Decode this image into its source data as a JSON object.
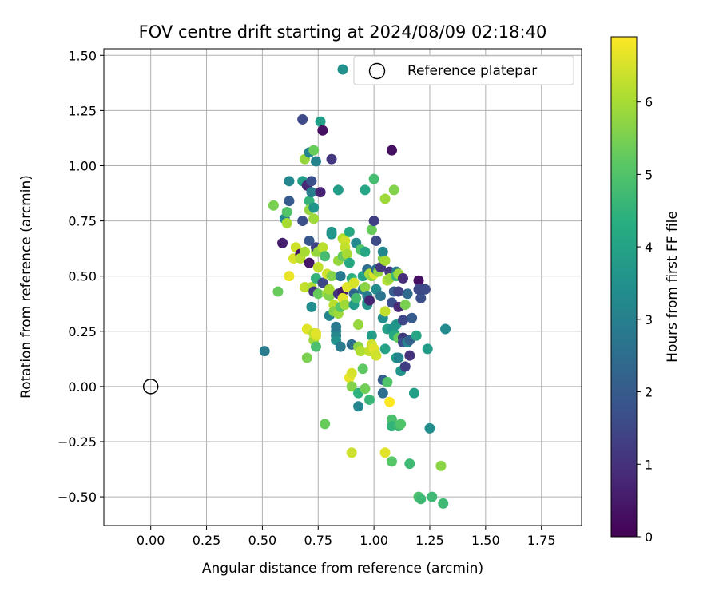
{
  "chart_data": {
    "type": "scatter",
    "title": "FOV centre drift starting at 2024/08/09 02:18:40",
    "xlabel": "Angular distance from reference (arcmin)",
    "ylabel": "Rotation from reference (arcmin)",
    "xlim": [
      -0.21,
      1.93
    ],
    "ylim": [
      -0.63,
      1.53
    ],
    "x_ticks": [
      0.0,
      0.25,
      0.5,
      0.75,
      1.0,
      1.25,
      1.5,
      1.75
    ],
    "x_tick_labels": [
      "0.00",
      "0.25",
      "0.50",
      "0.75",
      "1.00",
      "1.25",
      "1.50",
      "1.75"
    ],
    "y_ticks": [
      -0.5,
      -0.25,
      0.0,
      0.25,
      0.5,
      0.75,
      1.0,
      1.25,
      1.5
    ],
    "y_tick_labels": [
      "−0.50",
      "−0.25",
      "0.00",
      "0.25",
      "0.50",
      "0.75",
      "1.00",
      "1.25",
      "1.50"
    ],
    "grid": true,
    "legend": {
      "placement": "top-right",
      "entries": [
        {
          "marker": "filled-circle",
          "color": "#21918c",
          "label": ""
        },
        {
          "marker": "open-circle",
          "color": "#000000",
          "label": "Reference platepar"
        }
      ]
    },
    "colorbar": {
      "label": "Hours from first FF file",
      "colormap": "viridis",
      "range": [
        0,
        6.9
      ],
      "ticks": [
        0,
        1,
        2,
        3,
        4,
        5,
        6
      ],
      "tick_labels": [
        "0",
        "1",
        "2",
        "3",
        "4",
        "5",
        "6"
      ]
    },
    "reference_point": {
      "x": 0.0,
      "y": 0.0,
      "label": "Reference platepar"
    },
    "series": [
      {
        "points": [
          [
            0.51,
            0.16,
            2.9
          ],
          [
            0.55,
            0.82,
            5.5
          ],
          [
            0.57,
            0.43,
            5.3
          ],
          [
            0.59,
            0.65,
            0.6
          ],
          [
            0.6,
            0.76,
            3.2
          ],
          [
            0.61,
            0.74,
            6.0
          ],
          [
            0.61,
            0.79,
            5.0
          ],
          [
            0.62,
            0.5,
            6.7
          ],
          [
            0.62,
            0.84,
            2.0
          ],
          [
            0.62,
            0.93,
            3.2
          ],
          [
            0.64,
            0.58,
            6.5
          ],
          [
            0.65,
            0.63,
            6.4
          ],
          [
            0.67,
            0.6,
            0.4
          ],
          [
            0.67,
            0.58,
            6.2
          ],
          [
            0.68,
            1.21,
            1.6
          ],
          [
            0.68,
            0.93,
            3.8
          ],
          [
            0.68,
            0.75,
            1.7
          ],
          [
            0.69,
            1.03,
            5.8
          ],
          [
            0.69,
            0.61,
            6.0
          ],
          [
            0.69,
            0.45,
            6.3
          ],
          [
            0.7,
            0.26,
            6.6
          ],
          [
            0.7,
            0.13,
            5.5
          ],
          [
            0.7,
            0.91,
            0.8
          ],
          [
            0.71,
            0.84,
            4.5
          ],
          [
            0.71,
            0.8,
            5.8
          ],
          [
            0.71,
            0.66,
            1.9
          ],
          [
            0.71,
            0.56,
            0.4
          ],
          [
            0.71,
            1.06,
            3.1
          ],
          [
            0.72,
            0.45,
            6.1
          ],
          [
            0.72,
            0.36,
            3.4
          ],
          [
            0.72,
            0.93,
            1.7
          ],
          [
            0.72,
            0.88,
            2.9
          ],
          [
            0.73,
            0.43,
            1.1
          ],
          [
            0.73,
            0.21,
            5.9
          ],
          [
            0.73,
            0.81,
            3.6
          ],
          [
            0.73,
            0.76,
            5.9
          ],
          [
            0.73,
            1.07,
            5.3
          ],
          [
            0.73,
            0.24,
            6.2
          ],
          [
            0.74,
            0.49,
            4.5
          ],
          [
            0.74,
            1.02,
            3.1
          ],
          [
            0.74,
            0.18,
            4.9
          ],
          [
            0.74,
            0.23,
            6.4
          ],
          [
            0.74,
            0.24,
            6.6
          ],
          [
            0.74,
            0.61,
            6.0
          ],
          [
            0.74,
            0.63,
            1.4
          ],
          [
            0.75,
            0.61,
            5.8
          ],
          [
            0.75,
            0.54,
            6.3
          ],
          [
            0.75,
            0.42,
            5.3
          ],
          [
            0.76,
            0.88,
            0.7
          ],
          [
            0.76,
            1.2,
            3.9
          ],
          [
            0.77,
            1.16,
            0.3
          ],
          [
            0.77,
            0.63,
            6.2
          ],
          [
            0.77,
            0.47,
            1.5
          ],
          [
            0.78,
            -0.17,
            5.3
          ],
          [
            0.78,
            0.59,
            4.8
          ],
          [
            0.79,
            0.51,
            6.4
          ],
          [
            0.79,
            0.42,
            5.9
          ],
          [
            0.8,
            0.41,
            5.6
          ],
          [
            0.8,
            0.32,
            3.1
          ],
          [
            0.8,
            0.44,
            6.0
          ],
          [
            0.81,
            1.03,
            1.1
          ],
          [
            0.81,
            0.69,
            3.5
          ],
          [
            0.81,
            0.7,
            3.7
          ],
          [
            0.81,
            0.5,
            5.6
          ],
          [
            0.82,
            0.37,
            6.2
          ],
          [
            0.82,
            0.34,
            5.6
          ],
          [
            0.83,
            0.23,
            2.8
          ],
          [
            0.83,
            0.21,
            3.5
          ],
          [
            0.83,
            0.25,
            3.2
          ],
          [
            0.83,
            0.27,
            2.8
          ],
          [
            0.84,
            0.57,
            5.8
          ],
          [
            0.84,
            0.89,
            3.8
          ],
          [
            0.84,
            0.42,
            1.0
          ],
          [
            0.84,
            0.33,
            5.9
          ],
          [
            0.85,
            0.18,
            2.9
          ],
          [
            0.85,
            0.36,
            5.1
          ],
          [
            0.85,
            0.5,
            2.8
          ],
          [
            0.86,
            0.67,
            6.1
          ],
          [
            0.86,
            0.59,
            5.3
          ],
          [
            0.86,
            0.43,
            0.5
          ],
          [
            0.86,
            0.4,
            6.6
          ],
          [
            0.87,
            0.66,
            6.4
          ],
          [
            0.87,
            0.63,
            6.3
          ],
          [
            0.87,
            0.37,
            5.9
          ],
          [
            0.88,
            0.6,
            6.0
          ],
          [
            0.88,
            0.45,
            6.6
          ],
          [
            0.89,
            0.7,
            4.2
          ],
          [
            0.89,
            0.04,
            6.7
          ],
          [
            0.89,
            0.56,
            4.2
          ],
          [
            0.9,
            0.06,
            6.5
          ],
          [
            0.9,
            0.0,
            5.6
          ],
          [
            0.9,
            0.19,
            2.5
          ],
          [
            0.9,
            -0.3,
            6.4
          ],
          [
            0.9,
            0.49,
            4.4
          ],
          [
            0.91,
            0.37,
            3.8
          ],
          [
            0.91,
            0.42,
            2.3
          ],
          [
            0.91,
            0.47,
            6.5
          ],
          [
            0.92,
            0.65,
            3.3
          ],
          [
            0.92,
            0.4,
            4.8
          ],
          [
            0.93,
            0.28,
            5.8
          ],
          [
            0.93,
            -0.03,
            4.4
          ],
          [
            0.93,
            -0.09,
            3.2
          ],
          [
            0.93,
            0.18,
            5.7
          ],
          [
            0.94,
            0.16,
            6.1
          ],
          [
            0.94,
            0.62,
            5.0
          ],
          [
            0.95,
            0.08,
            5.2
          ],
          [
            0.95,
            0.5,
            4.0
          ],
          [
            0.95,
            0.44,
            2.8
          ],
          [
            0.96,
            0.89,
            4.1
          ],
          [
            0.96,
            -0.01,
            5.4
          ],
          [
            0.96,
            0.61,
            4.1
          ],
          [
            0.96,
            0.45,
            5.7
          ],
          [
            0.97,
            0.53,
            2.5
          ],
          [
            0.97,
            0.38,
            4.0
          ],
          [
            0.97,
            0.41,
            2.8
          ],
          [
            0.97,
            0.37,
            3.7
          ],
          [
            0.98,
            0.39,
            0.7
          ],
          [
            0.98,
            0.16,
            6.3
          ],
          [
            0.98,
            -0.06,
            4.6
          ],
          [
            0.98,
            0.51,
            6.1
          ],
          [
            0.99,
            0.71,
            5.3
          ],
          [
            0.99,
            0.23,
            3.8
          ],
          [
            0.99,
            0.19,
            6.4
          ],
          [
            0.99,
            0.5,
            5.8
          ],
          [
            1.0,
            0.94,
            4.8
          ],
          [
            1.0,
            0.75,
            1.3
          ],
          [
            1.0,
            0.51,
            6.5
          ],
          [
            1.0,
            0.17,
            6.6
          ],
          [
            1.01,
            0.14,
            6.4
          ],
          [
            1.01,
            0.66,
            1.6
          ],
          [
            1.01,
            0.53,
            2.6
          ],
          [
            1.01,
            0.44,
            3.3
          ],
          [
            1.02,
            0.52,
            5.8
          ],
          [
            1.03,
            0.54,
            1.1
          ],
          [
            1.03,
            0.41,
            2.7
          ],
          [
            1.04,
            -0.03,
            2.5
          ],
          [
            1.04,
            0.31,
            3.4
          ],
          [
            1.04,
            0.58,
            5.6
          ],
          [
            1.04,
            0.61,
            3.2
          ],
          [
            1.04,
            0.03,
            2.1
          ],
          [
            1.05,
            0.85,
            5.9
          ],
          [
            1.05,
            0.17,
            4.0
          ],
          [
            1.05,
            -0.3,
            6.6
          ],
          [
            1.05,
            0.34,
            6.3
          ],
          [
            1.05,
            0.57,
            6.0
          ],
          [
            1.06,
            0.48,
            6.1
          ],
          [
            1.06,
            0.02,
            5.0
          ],
          [
            1.06,
            0.26,
            4.0
          ],
          [
            1.07,
            -0.07,
            6.9
          ],
          [
            1.07,
            0.52,
            1.1
          ],
          [
            1.07,
            0.49,
            5.9
          ],
          [
            1.08,
            0.26,
            3.5
          ],
          [
            1.08,
            -0.15,
            4.9
          ],
          [
            1.08,
            -0.34,
            5.1
          ],
          [
            1.08,
            0.38,
            1.7
          ],
          [
            1.08,
            1.07,
            0.3
          ],
          [
            1.08,
            -0.18,
            4.5
          ],
          [
            1.09,
            0.89,
            5.6
          ],
          [
            1.09,
            0.24,
            3.8
          ],
          [
            1.09,
            0.23,
            4.2
          ],
          [
            1.09,
            0.43,
            2.0
          ],
          [
            1.1,
            0.52,
            2.8
          ],
          [
            1.1,
            0.28,
            3.6
          ],
          [
            1.1,
            0.13,
            3.9
          ],
          [
            1.1,
            0.5,
            4.7
          ],
          [
            1.11,
            0.36,
            0.8
          ],
          [
            1.11,
            -0.18,
            4.7
          ],
          [
            1.11,
            0.13,
            3.1
          ],
          [
            1.11,
            0.51,
            5.9
          ],
          [
            1.11,
            0.43,
            1.4
          ],
          [
            1.11,
            0.22,
            5.3
          ],
          [
            1.12,
            -0.17,
            5.0
          ],
          [
            1.12,
            0.07,
            3.6
          ],
          [
            1.13,
            0.49,
            0.9
          ],
          [
            1.13,
            0.22,
            1.2
          ],
          [
            1.13,
            0.3,
            1.5
          ],
          [
            1.13,
            0.2,
            1.7
          ],
          [
            1.14,
            0.09,
            1.3
          ],
          [
            1.14,
            0.37,
            5.5
          ],
          [
            1.15,
            0.2,
            3.2
          ],
          [
            1.15,
            0.42,
            2.4
          ],
          [
            1.16,
            -0.35,
            4.7
          ],
          [
            1.16,
            0.14,
            1.0
          ],
          [
            1.16,
            0.21,
            2.2
          ],
          [
            1.17,
            0.31,
            2.0
          ],
          [
            1.18,
            -0.03,
            3.9
          ],
          [
            1.19,
            0.23,
            4.1
          ],
          [
            1.2,
            0.48,
            0.3
          ],
          [
            1.2,
            -0.5,
            4.9
          ],
          [
            1.2,
            0.44,
            1.6
          ],
          [
            1.21,
            0.4,
            1.7
          ],
          [
            1.21,
            -0.51,
            4.7
          ],
          [
            1.22,
            0.44,
            1.5
          ],
          [
            1.23,
            0.44,
            1.6
          ],
          [
            1.24,
            0.17,
            3.8
          ],
          [
            1.25,
            -0.19,
            3.4
          ],
          [
            1.26,
            -0.5,
            4.7
          ],
          [
            1.3,
            -0.36,
            5.7
          ],
          [
            1.31,
            -0.53,
            4.7
          ],
          [
            1.32,
            0.26,
            3.3
          ]
        ]
      }
    ]
  }
}
